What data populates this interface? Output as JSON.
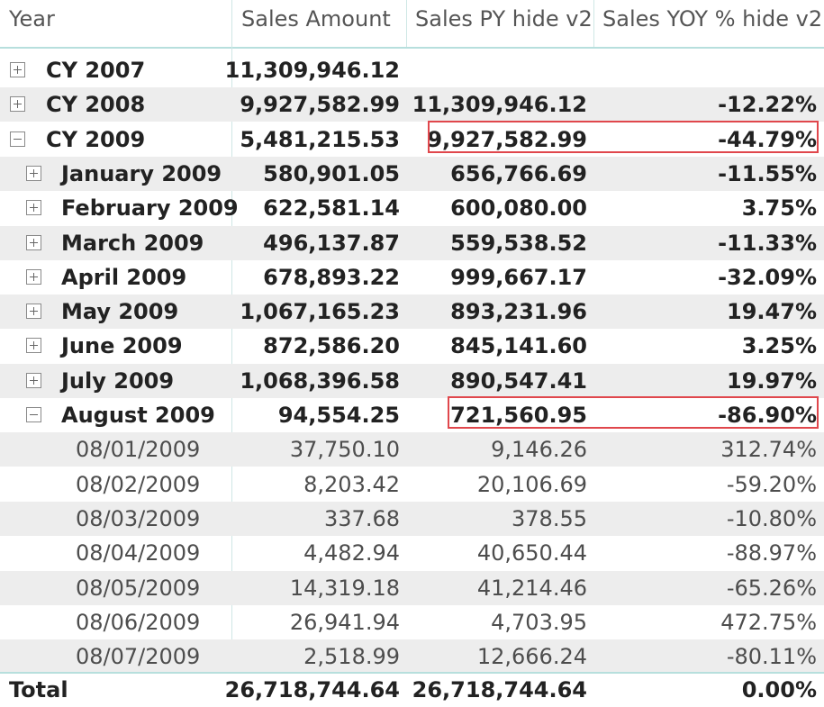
{
  "columns": [
    "Year",
    "Sales Amount",
    "Sales PY hide v2",
    "Sales YOY % hide v2"
  ],
  "rows": [
    {
      "level": 0,
      "toggle": "plus",
      "label": "CY 2007",
      "sales": "11,309,946.12",
      "py": "",
      "yoy": ""
    },
    {
      "level": 0,
      "toggle": "plus",
      "label": "CY 2008",
      "sales": "9,927,582.99",
      "py": "11,309,946.12",
      "yoy": "-12.22%"
    },
    {
      "level": 0,
      "toggle": "minus",
      "label": "CY 2009",
      "sales": "5,481,215.53",
      "py": "9,927,582.99",
      "yoy": "-44.79%",
      "highlighted": true
    },
    {
      "level": 1,
      "toggle": "plus",
      "label": "January 2009",
      "sales": "580,901.05",
      "py": "656,766.69",
      "yoy": "-11.55%"
    },
    {
      "level": 1,
      "toggle": "plus",
      "label": "February 2009",
      "sales": "622,581.14",
      "py": "600,080.00",
      "yoy": "3.75%"
    },
    {
      "level": 1,
      "toggle": "plus",
      "label": "March 2009",
      "sales": "496,137.87",
      "py": "559,538.52",
      "yoy": "-11.33%"
    },
    {
      "level": 1,
      "toggle": "plus",
      "label": "April 2009",
      "sales": "678,893.22",
      "py": "999,667.17",
      "yoy": "-32.09%"
    },
    {
      "level": 1,
      "toggle": "plus",
      "label": "May 2009",
      "sales": "1,067,165.23",
      "py": "893,231.96",
      "yoy": "19.47%"
    },
    {
      "level": 1,
      "toggle": "plus",
      "label": "June 2009",
      "sales": "872,586.20",
      "py": "845,141.60",
      "yoy": "3.25%"
    },
    {
      "level": 1,
      "toggle": "plus",
      "label": "July 2009",
      "sales": "1,068,396.58",
      "py": "890,547.41",
      "yoy": "19.97%"
    },
    {
      "level": 1,
      "toggle": "minus",
      "label": "August 2009",
      "sales": "94,554.25",
      "py": "721,560.95",
      "yoy": "-86.90%",
      "highlighted": true
    },
    {
      "level": 2,
      "toggle": "",
      "label": "08/01/2009",
      "sales": "37,750.10",
      "py": "9,146.26",
      "yoy": "312.74%"
    },
    {
      "level": 2,
      "toggle": "",
      "label": "08/02/2009",
      "sales": "8,203.42",
      "py": "20,106.69",
      "yoy": "-59.20%"
    },
    {
      "level": 2,
      "toggle": "",
      "label": "08/03/2009",
      "sales": "337.68",
      "py": "378.55",
      "yoy": "-10.80%"
    },
    {
      "level": 2,
      "toggle": "",
      "label": "08/04/2009",
      "sales": "4,482.94",
      "py": "40,650.44",
      "yoy": "-88.97%"
    },
    {
      "level": 2,
      "toggle": "",
      "label": "08/05/2009",
      "sales": "14,319.18",
      "py": "41,214.46",
      "yoy": "-65.26%"
    },
    {
      "level": 2,
      "toggle": "",
      "label": "08/06/2009",
      "sales": "26,941.94",
      "py": "4,703.95",
      "yoy": "472.75%"
    },
    {
      "level": 2,
      "toggle": "",
      "label": "08/07/2009",
      "sales": "2,518.99",
      "py": "12,666.24",
      "yoy": "-80.11%"
    }
  ],
  "total": {
    "label": "Total",
    "sales": "26,718,744.64",
    "py": "26,718,744.64",
    "yoy": "0.00%"
  },
  "colors": {
    "highlight": "#e0474c",
    "header_border": "#b7dfdd",
    "row_alt": "#ededed"
  }
}
